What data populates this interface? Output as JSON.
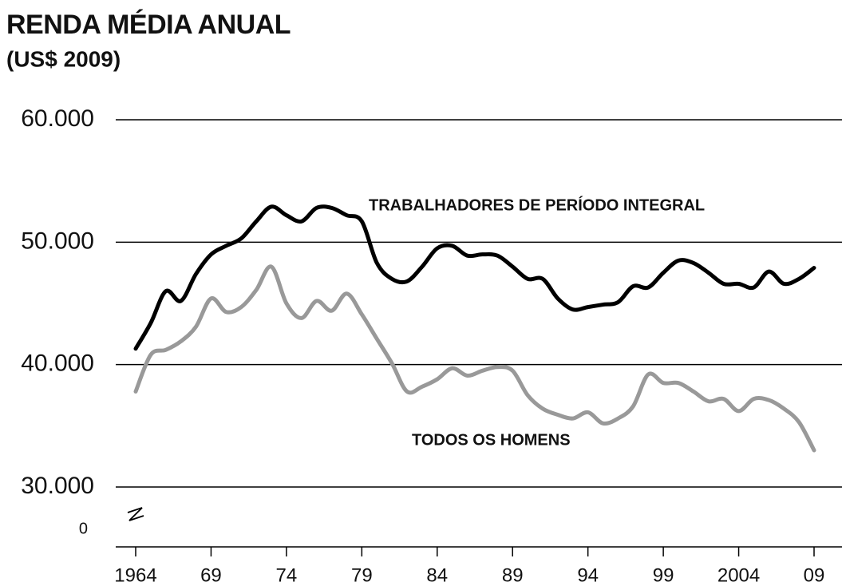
{
  "chart_data": {
    "type": "line",
    "title": "RENDA MÉDIA ANUAL",
    "subtitle": "(US$ 2009)",
    "x": [
      1964,
      1965,
      1966,
      1967,
      1968,
      1969,
      1970,
      1971,
      1972,
      1973,
      1974,
      1975,
      1976,
      1977,
      1978,
      1979,
      1980,
      1981,
      1982,
      1983,
      1984,
      1985,
      1986,
      1987,
      1988,
      1989,
      1990,
      1991,
      1992,
      1993,
      1994,
      1995,
      1996,
      1997,
      1998,
      1999,
      2000,
      2001,
      2002,
      2003,
      2004,
      2005,
      2006,
      2007,
      2008,
      2009
    ],
    "series": [
      {
        "name": "TRABALHADORES DE PERÍODO INTEGRAL",
        "color": "#000000",
        "values": [
          41300,
          43400,
          46000,
          45200,
          47400,
          49000,
          49700,
          50300,
          51700,
          52900,
          52200,
          51700,
          52800,
          52800,
          52200,
          51700,
          48300,
          47000,
          46800,
          48000,
          49500,
          49700,
          48900,
          49000,
          48900,
          48000,
          47000,
          47000,
          45400,
          44500,
          44700,
          44900,
          45100,
          46400,
          46300,
          47500,
          48500,
          48300,
          47500,
          46600,
          46600,
          46300,
          47600,
          46600,
          47000,
          47900
        ]
      },
      {
        "name": "TODOS OS HOMENS",
        "color": "#999999",
        "values": [
          37800,
          40800,
          41200,
          41900,
          43100,
          45400,
          44300,
          44700,
          46100,
          48000,
          45000,
          43800,
          45200,
          44400,
          45800,
          44100,
          42100,
          40100,
          37800,
          38200,
          38800,
          39700,
          39100,
          39500,
          39800,
          39500,
          37500,
          36400,
          35900,
          35600,
          36100,
          35200,
          35600,
          36600,
          39200,
          38500,
          38500,
          37800,
          37000,
          37200,
          36200,
          37200,
          37100,
          36400,
          35300,
          33000
        ]
      }
    ],
    "xlim": [
      1964,
      2009
    ],
    "xticks": [
      1964,
      {
        "value": 1969,
        "label": "69"
      },
      {
        "value": 1974,
        "label": "74"
      },
      {
        "value": 1979,
        "label": "79"
      },
      {
        "value": 1984,
        "label": "84"
      },
      {
        "value": 1989,
        "label": "89"
      },
      {
        "value": 1994,
        "label": "94"
      },
      {
        "value": 1999,
        "label": "99"
      },
      2004,
      {
        "value": 2009,
        "label": "09"
      }
    ],
    "ylim": [
      30000,
      60000
    ],
    "yticks": [
      0,
      {
        "value": 30000,
        "label": "30.000"
      },
      {
        "value": 40000,
        "label": "40.000"
      },
      {
        "value": 50000,
        "label": "50.000"
      },
      {
        "value": 60000,
        "label": "60.000"
      }
    ],
    "axis_break": true,
    "grid": true
  }
}
